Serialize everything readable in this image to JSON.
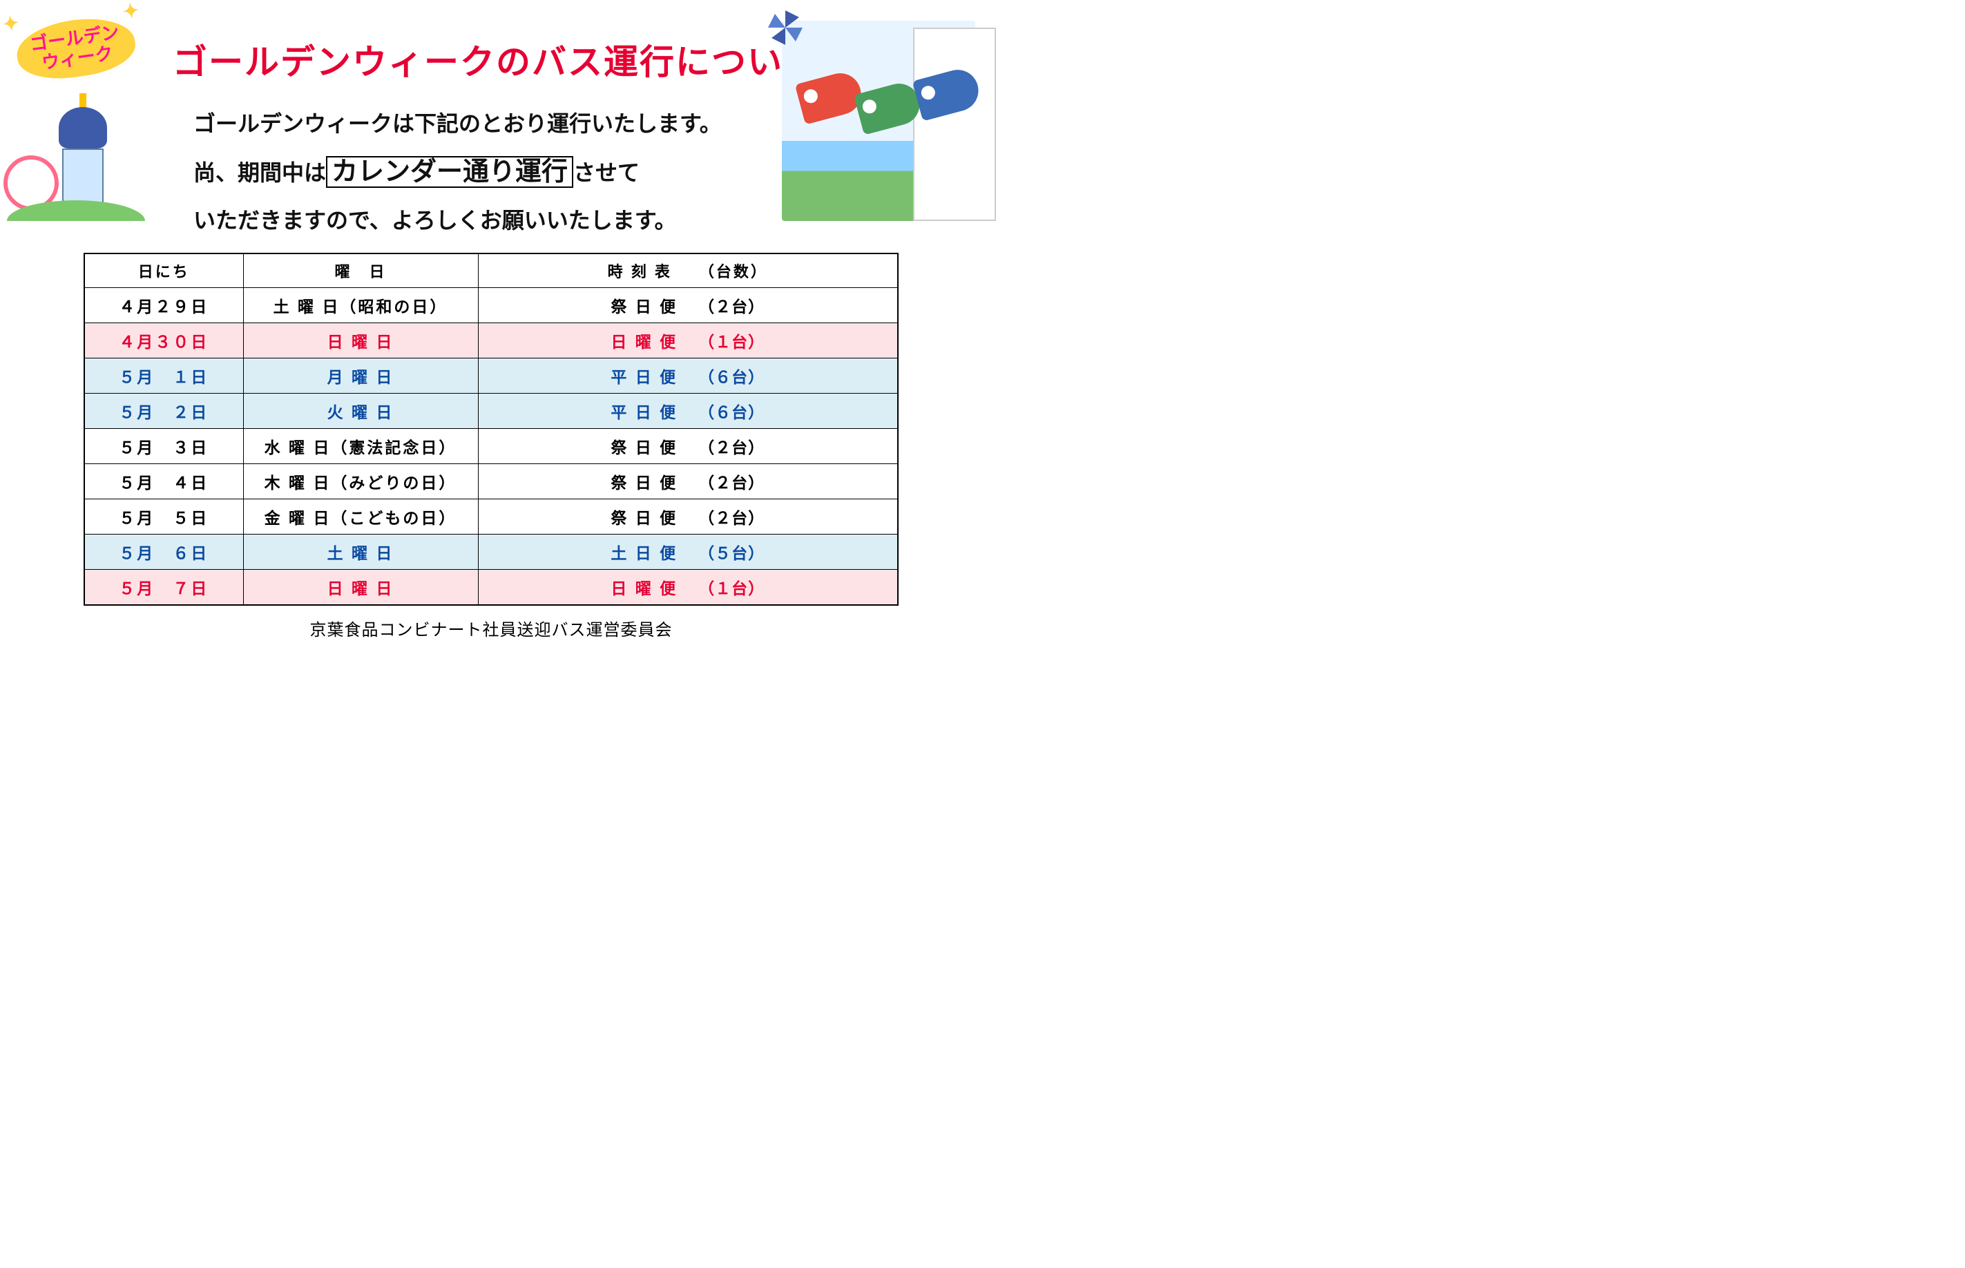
{
  "badge": {
    "line1": "ゴールデン",
    "line2": "ウィーク"
  },
  "title": "ゴールデンウィークのバス運行について",
  "lead": {
    "l1": "ゴールデンウィークは下記のとおり運行いたします。",
    "l2a": "尚、期間中は",
    "l2_box": "カレンダー通り運行",
    "l2b": "させて",
    "l3": "いただきますので、よろしくお願いいたします。"
  },
  "table": {
    "headers": {
      "date": "日にち",
      "day": "曜　日",
      "sched": "時 刻 表　　（台数）"
    },
    "rows": [
      {
        "style": "plain",
        "date": "４月２９日",
        "day": "土 曜 日（昭和の日）",
        "service": "祭 日 便",
        "count": "（２台）"
      },
      {
        "style": "pink",
        "date": "４月３０日",
        "day": "日 曜 日",
        "service": "日 曜 便",
        "count": "（１台）"
      },
      {
        "style": "blue",
        "date": "５月　１日",
        "day": "月 曜 日",
        "service": "平 日 便",
        "count": "（６台）"
      },
      {
        "style": "blue",
        "date": "５月　２日",
        "day": "火 曜 日",
        "service": "平 日 便",
        "count": "（６台）"
      },
      {
        "style": "plain",
        "date": "５月　３日",
        "day": "水 曜 日（憲法記念日）",
        "service": "祭 日 便",
        "count": "（２台）"
      },
      {
        "style": "plain",
        "date": "５月　４日",
        "day": "木 曜 日（みどりの日）",
        "service": "祭 日 便",
        "count": "（２台）"
      },
      {
        "style": "plain",
        "date": "５月　５日",
        "day": "金 曜 日（こどもの日）",
        "service": "祭 日 便",
        "count": "（２台）"
      },
      {
        "style": "blue",
        "date": "５月　６日",
        "day": "土 曜 日",
        "service": "土 日 便",
        "count": "（５台）"
      },
      {
        "style": "pink",
        "date": "５月　７日",
        "day": "日 曜 日",
        "service": "日 曜 便",
        "count": "（１台）"
      }
    ],
    "row_colors": {
      "pink_bg": "#fde3e6",
      "pink_fg": "#e60033",
      "blue_bg": "#dbeef5",
      "blue_fg": "#0b4aa2",
      "plain_bg": "#ffffff",
      "plain_fg": "#000000"
    },
    "border_color": "#000000"
  },
  "footer": "京葉食品コンビナート社員送迎バス運営委員会",
  "colors": {
    "title": "#e60033",
    "text": "#111111",
    "badge_bg": "#ffd23f",
    "badge_fg": "#ff1493"
  }
}
